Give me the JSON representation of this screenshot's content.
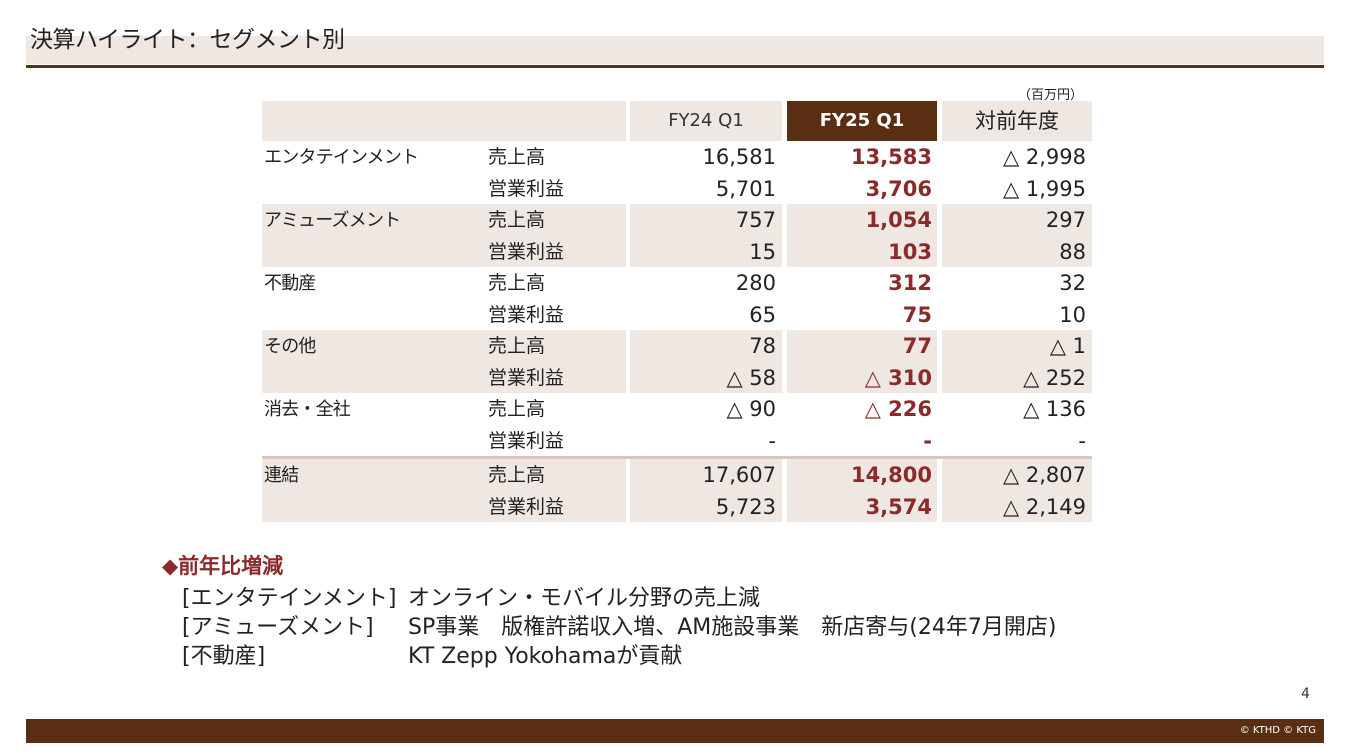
{
  "slide": {
    "title": "決算ハイライト：セグメント別",
    "unit": "（百万円）",
    "page_number": "4",
    "copyright": "© KTHD © KTG"
  },
  "table": {
    "headers": [
      "",
      "FY24 Q1",
      "FY25 Q1",
      "対前年度"
    ],
    "rows": [
      {
        "segment": "エンタテインメント",
        "item": "売上高",
        "fy24": "16,581",
        "fy25": "13,583",
        "yoy": "△ 2,998"
      },
      {
        "segment": "",
        "item": "営業利益",
        "fy24": "5,701",
        "fy25": "3,706",
        "yoy": "△ 1,995"
      },
      {
        "segment": "アミューズメント",
        "item": "売上高",
        "fy24": "757",
        "fy25": "1,054",
        "yoy": "297"
      },
      {
        "segment": "",
        "item": "営業利益",
        "fy24": "15",
        "fy25": "103",
        "yoy": "88"
      },
      {
        "segment": "不動産",
        "item": "売上高",
        "fy24": "280",
        "fy25": "312",
        "yoy": "32"
      },
      {
        "segment": "",
        "item": "営業利益",
        "fy24": "65",
        "fy25": "75",
        "yoy": "10"
      },
      {
        "segment": "その他",
        "item": "売上高",
        "fy24": "78",
        "fy25": "77",
        "yoy": "△ 1"
      },
      {
        "segment": "",
        "item": "営業利益",
        "fy24": "△ 58",
        "fy25": "△ 310",
        "yoy": "△ 252"
      },
      {
        "segment": "消去・全社",
        "item": "売上高",
        "fy24": "△ 90",
        "fy25": "△ 226",
        "yoy": "△ 136"
      },
      {
        "segment": "",
        "item": "営業利益",
        "fy24": "-",
        "fy25": "-",
        "yoy": "-"
      },
      {
        "segment": "連結",
        "item": "売上高",
        "fy24": "17,607",
        "fy25": "14,800",
        "yoy": "△ 2,807"
      },
      {
        "segment": "",
        "item": "営業利益",
        "fy24": "5,723",
        "fy25": "3,574",
        "yoy": "△ 2,149"
      }
    ]
  },
  "notes": {
    "heading": "◆前年比増減",
    "items": [
      {
        "key": "[エンタテインメント]",
        "text": "オンライン・モバイル分野の売上減"
      },
      {
        "key": "[アミューズメント]",
        "text": "SP事業　版権許諾収入増、AM施設事業　新店寄与(24年7月開店)"
      },
      {
        "key": "[不動産]",
        "text": "KT Zepp Yokohamaが貢献"
      }
    ]
  },
  "colors": {
    "brand_brown": "#5a2e12",
    "highlight_red": "#8b2a2a",
    "band_beige": "#efe7e2"
  }
}
